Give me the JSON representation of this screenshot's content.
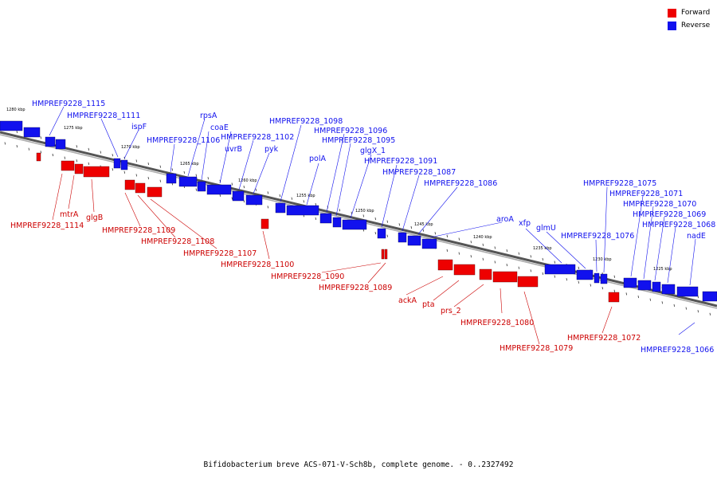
{
  "legend": {
    "forward": {
      "label": "Forward",
      "color": "#ee0000"
    },
    "reverse": {
      "label": "Reverse",
      "color": "#1111ee"
    }
  },
  "caption": "Bifidobacterium breve ACS-071-V-Sch8b, complete genome. - 0..2327492",
  "ticks": [
    "1280 kbp",
    "1275 kbp",
    "1270 kbp",
    "1265 kbp",
    "1260 kbp",
    "1255 kbp",
    "1250 kbp",
    "1245 kbp",
    "1240 kbp",
    "1235 kbp",
    "1230 kbp",
    "1225 kbp"
  ],
  "reverse_labels": [
    "HMPREF9228_1115",
    "HMPREF9228_1111",
    "ispF",
    "HMPREF9228_1106",
    "rpsA",
    "coaE",
    "uvrB",
    "HMPREF9228_1102",
    "pyk",
    "HMPREF9228_1098",
    "polA",
    "HMPREF9228_1096",
    "HMPREF9228_1095",
    "glgX_1",
    "HMPREF9228_1091",
    "HMPREF9228_1087",
    "HMPREF9228_1086",
    "aroA",
    "xfp",
    "glmU",
    "HMPREF9228_1076",
    "HMPREF9228_1075",
    "HMPREF9228_1071",
    "HMPREF9228_1070",
    "HMPREF9228_1069",
    "HMPREF9228_1068",
    "nadE",
    "HMPREF9228_1066"
  ],
  "forward_labels": [
    "HMPREF9228_1114",
    "mtrA",
    "glgB",
    "HMPREF9228_1109",
    "HMPREF9228_1108",
    "HMPREF9228_1107",
    "HMPREF9228_1100",
    "HMPREF9228_1090",
    "HMPREF9228_1089",
    "ackA",
    "pta",
    "prs_2",
    "HMPREF9228_1080",
    "HMPREF9228_1079",
    "HMPREF9228_1072"
  ]
}
